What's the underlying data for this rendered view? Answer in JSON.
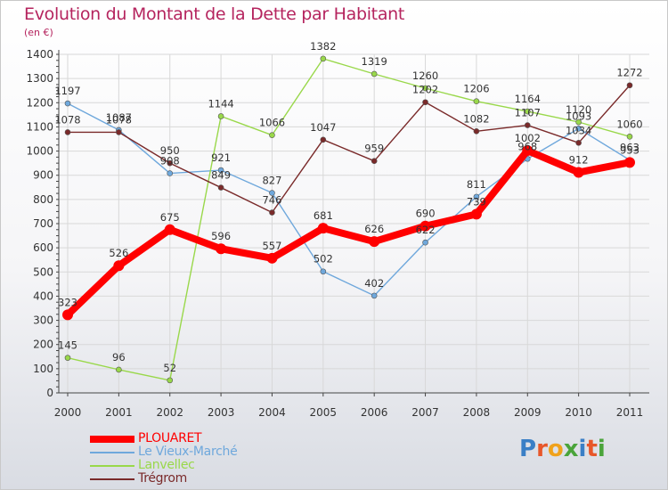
{
  "title": "Evolution du Montant de la Dette par Habitant",
  "subtitle": "(en €)",
  "brand": {
    "letters": [
      {
        "ch": "P",
        "color": "#3a7fc6"
      },
      {
        "ch": "r",
        "color": "#e8572a"
      },
      {
        "ch": "o",
        "color": "#f0a21b"
      },
      {
        "ch": "x",
        "color": "#4aa43a"
      },
      {
        "ch": "i",
        "color": "#3a7fc6"
      },
      {
        "ch": "t",
        "color": "#e8572a"
      },
      {
        "ch": "i",
        "color": "#4aa43a"
      }
    ]
  },
  "chart_data": {
    "type": "line",
    "title": "Evolution du Montant de la Dette par Habitant",
    "subtitle": "(en €)",
    "x": [
      2000,
      2001,
      2002,
      2003,
      2004,
      2005,
      2006,
      2007,
      2008,
      2009,
      2010,
      2011
    ],
    "ylim": [
      0,
      1400
    ],
    "yticks": [
      0,
      100,
      200,
      300,
      400,
      500,
      600,
      700,
      800,
      900,
      1000,
      1100,
      1200,
      1300,
      1400
    ],
    "grid": true,
    "legend_position": "bottom-left",
    "series": [
      {
        "name": "PLOUARET",
        "color": "#ff0000",
        "values": [
          323,
          526,
          675,
          596,
          557,
          681,
          626,
          690,
          739,
          1002,
          912,
          953
        ]
      },
      {
        "name": "Le Vieux-Marché",
        "color": "#6fa8dc",
        "values": [
          1197,
          1087,
          908,
          921,
          827,
          502,
          402,
          622,
          811,
          968,
          1093,
          963
        ]
      },
      {
        "name": "Lanvellec",
        "color": "#99d84a",
        "values": [
          145,
          96,
          52,
          1144,
          1066,
          1382,
          1319,
          1260,
          1206,
          1164,
          1120,
          1060
        ]
      },
      {
        "name": "Trégrom",
        "color": "#7a2a2a",
        "values": [
          1078,
          1078,
          950,
          849,
          746,
          1047,
          959,
          1202,
          1082,
          1107,
          1034,
          1272
        ]
      }
    ]
  }
}
